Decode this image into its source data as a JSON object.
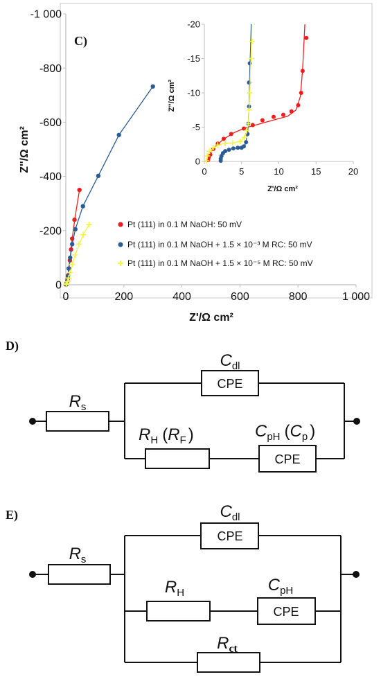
{
  "colors": {
    "red": "#ee1c1c",
    "blue": "#2b5c94",
    "yellow": "#f3f34a"
  },
  "chart_data": {
    "type": "scatter",
    "panel_label": "C)",
    "main": {
      "xlabel": "Z'/Ω cm²",
      "ylabel": "Z''/Ω cm²",
      "xlim": [
        0,
        1000
      ],
      "ylim": [
        0,
        -1000
      ],
      "x_ticks": [
        "0",
        "200",
        "400",
        "600",
        "800",
        "1 000"
      ],
      "y_ticks": [
        "0",
        "-200",
        "-400",
        "-600",
        "-800",
        "-1 000"
      ],
      "series": [
        {
          "name": "Pt (111)  in 0.1 M NaOH: 50 mV",
          "color": "#ee1c1c",
          "points": [
            [
              0,
              -1
            ],
            [
              2,
              -4
            ],
            [
              4,
              -10
            ],
            [
              6,
              -20
            ],
            [
              8,
              -35
            ],
            [
              11,
              -60
            ],
            [
              14,
              -90
            ],
            [
              18,
              -130
            ],
            [
              22,
              -170
            ],
            [
              30,
              -240
            ],
            [
              47,
              -350
            ]
          ],
          "smooth": [
            [
              0,
              -1
            ],
            [
              4,
              -10
            ],
            [
              8,
              -35
            ],
            [
              14,
              -90
            ],
            [
              22,
              -170
            ],
            [
              32,
              -250
            ],
            [
              47,
              -350
            ]
          ]
        },
        {
          "name": "Pt (111) in 0.1 M NaOH + 1.5 × 10⁻³ M RC: 50 mV",
          "color": "#2b5c94",
          "points": [
            [
              2,
              -1
            ],
            [
              3,
              -5
            ],
            [
              5,
              -14
            ],
            [
              7,
              -30
            ],
            [
              10,
              -60
            ],
            [
              15,
              -100
            ],
            [
              22,
              -150
            ],
            [
              33,
              -205
            ],
            [
              59,
              -290
            ],
            [
              112,
              -402
            ],
            [
              183,
              -553
            ],
            [
              300,
              -732
            ]
          ],
          "smooth": [
            [
              2,
              -1
            ],
            [
              5,
              -14
            ],
            [
              10,
              -60
            ],
            [
              22,
              -150
            ],
            [
              33,
              -205
            ],
            [
              59,
              -290
            ],
            [
              112,
              -402
            ],
            [
              183,
              -553
            ],
            [
              300,
              -732
            ]
          ]
        },
        {
          "name": "Pt (111) in 0.1 M NaOH + 1.5 × 10⁻⁵  M RC: 50 mV",
          "color": "#f3f34a",
          "points": [
            [
              1,
              -1
            ],
            [
              3,
              -5
            ],
            [
              6,
              -12
            ],
            [
              10,
              -25
            ],
            [
              15,
              -45
            ],
            [
              22,
              -75
            ],
            [
              32,
              -110
            ],
            [
              45,
              -150
            ],
            [
              60,
              -185
            ],
            [
              80,
              -222
            ]
          ],
          "smooth": [
            [
              1,
              -1
            ],
            [
              6,
              -12
            ],
            [
              15,
              -45
            ],
            [
              32,
              -110
            ],
            [
              60,
              -185
            ],
            [
              80,
              -222
            ]
          ]
        }
      ]
    },
    "inset": {
      "xlabel": "Z'/Ω cm²",
      "ylabel": "Z''/Ω cm²",
      "xlim": [
        0,
        20
      ],
      "ylim": [
        0,
        -20
      ],
      "x_ticks": [
        "0",
        "5",
        "10",
        "15",
        "20"
      ],
      "y_ticks": [
        "0",
        "-5",
        "-10",
        "-15",
        "-20"
      ],
      "series": [
        {
          "name": "red",
          "color": "#ee1c1c",
          "points": [
            [
              0.5,
              -0.2
            ],
            [
              0.6,
              -0.6
            ],
            [
              0.8,
              -1.0
            ],
            [
              1.2,
              -1.8
            ],
            [
              1.8,
              -2.6
            ],
            [
              2.6,
              -3.3
            ],
            [
              3.6,
              -4.0
            ],
            [
              5.3,
              -4.8
            ],
            [
              6.5,
              -5.3
            ],
            [
              7.8,
              -6.0
            ],
            [
              9.3,
              -6.5
            ],
            [
              10.6,
              -6.8
            ],
            [
              11.7,
              -7.3
            ],
            [
              12.6,
              -8.2
            ],
            [
              13.0,
              -10.0
            ],
            [
              13.2,
              -13.2
            ],
            [
              13.7,
              -18.0
            ]
          ],
          "smooth": [
            [
              0.4,
              0
            ],
            [
              0.6,
              -0.8
            ],
            [
              1.2,
              -1.9
            ],
            [
              2.5,
              -3.2
            ],
            [
              4.0,
              -4.2
            ],
            [
              5.5,
              -4.9
            ],
            [
              7.5,
              -5.5
            ],
            [
              9.5,
              -6.1
            ],
            [
              11.2,
              -6.6
            ],
            [
              12.3,
              -7.5
            ],
            [
              12.9,
              -9.5
            ],
            [
              13.2,
              -13.5
            ],
            [
              13.5,
              -20
            ]
          ]
        },
        {
          "name": "blue",
          "color": "#2b5c94",
          "points": [
            [
              2.2,
              -0.1
            ],
            [
              2.2,
              -0.4
            ],
            [
              2.3,
              -0.8
            ],
            [
              2.5,
              -1.2
            ],
            [
              2.8,
              -1.5
            ],
            [
              3.3,
              -1.7
            ],
            [
              3.9,
              -1.9
            ],
            [
              4.5,
              -2.0
            ],
            [
              5.0,
              -2.0
            ],
            [
              5.3,
              -2.2
            ],
            [
              5.6,
              -2.8
            ],
            [
              5.8,
              -4.0
            ],
            [
              5.9,
              -5.5
            ],
            [
              6.0,
              -8.0
            ],
            [
              6.0,
              -11.5
            ],
            [
              6.1,
              -14.3
            ]
          ],
          "smooth": [
            [
              2.2,
              0
            ],
            [
              2.3,
              -0.8
            ],
            [
              2.8,
              -1.5
            ],
            [
              3.9,
              -1.9
            ],
            [
              5.0,
              -2.0
            ],
            [
              5.5,
              -2.5
            ],
            [
              5.8,
              -4.0
            ],
            [
              5.9,
              -5.5
            ],
            [
              6.0,
              -8
            ],
            [
              6.1,
              -13
            ],
            [
              6.3,
              -20
            ]
          ]
        },
        {
          "name": "yellow",
          "color": "#f3f34a",
          "points": [
            [
              0.3,
              -0.1
            ],
            [
              0.4,
              -0.8
            ],
            [
              0.7,
              -1.5
            ],
            [
              1.2,
              -2.0
            ],
            [
              1.8,
              -2.4
            ],
            [
              2.8,
              -2.6
            ],
            [
              3.8,
              -2.7
            ],
            [
              4.8,
              -2.9
            ],
            [
              5.4,
              -3.5
            ],
            [
              5.7,
              -4.5
            ],
            [
              5.9,
              -5.5
            ],
            [
              6.0,
              -7.5
            ],
            [
              6.1,
              -10.0
            ],
            [
              6.3,
              -15.0
            ],
            [
              6.4,
              -17.5
            ]
          ],
          "smooth": [
            [
              0.3,
              0
            ],
            [
              0.5,
              -1.0
            ],
            [
              1.2,
              -2.0
            ],
            [
              2.5,
              -2.6
            ],
            [
              4.0,
              -2.7
            ],
            [
              5.0,
              -3.0
            ],
            [
              5.6,
              -4.0
            ],
            [
              5.9,
              -5.5
            ],
            [
              6.1,
              -10
            ],
            [
              6.4,
              -20
            ]
          ]
        }
      ]
    }
  },
  "circuit_d": {
    "label": "D)",
    "rs": {
      "main": "R",
      "sub": "s"
    },
    "cdl": {
      "main": "C",
      "sub": "dl",
      "box": "CPE"
    },
    "rh": {
      "main": "R",
      "sub": "H",
      "paren_open": "(",
      "alt_main": "R",
      "alt_sub": "F",
      "paren_close": ")"
    },
    "cph": {
      "main": "C",
      "sub": "pH",
      "paren_open": "(",
      "alt_main": "C",
      "alt_sub": "p",
      "paren_close": ")",
      "box": "CPE"
    }
  },
  "circuit_e": {
    "label": "E)",
    "rs": {
      "main": "R",
      "sub": "s"
    },
    "cdl": {
      "main": "C",
      "sub": "dl",
      "box": "CPE"
    },
    "rh": {
      "main": "R",
      "sub": "H"
    },
    "cph": {
      "main": "C",
      "sub": "pH",
      "box": "CPE"
    },
    "rct": {
      "main": "R",
      "sub": "ct"
    }
  }
}
